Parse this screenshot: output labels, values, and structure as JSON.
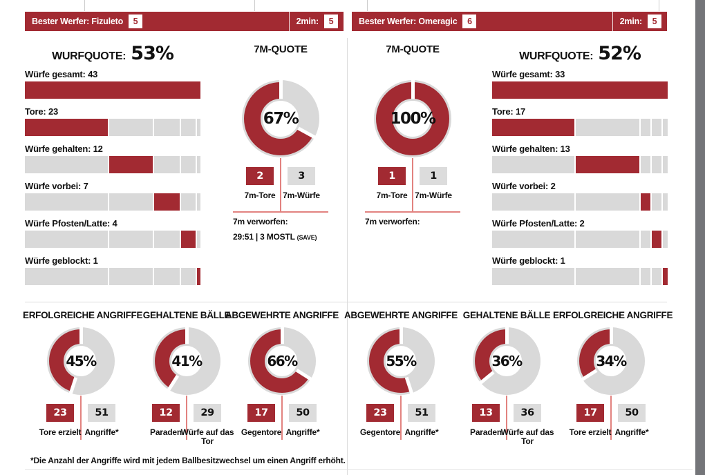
{
  "colors": {
    "red": "#a22a32",
    "gray": "#d9d9d9",
    "box_gray": "#dcdcdc",
    "connector_red": "#e2827f",
    "divider": "#dcdcdc",
    "tick": "#cccccc",
    "edge_strip": "#747579",
    "bottom_line": "#e3e3e3",
    "white": "#ffffff"
  },
  "header_home": {
    "label": "Bester Werfer: Fizuleto",
    "badge": "5",
    "right_label": "2min:",
    "right_badge": "5"
  },
  "header_away": {
    "label": "Bester Werfer: Omeragic",
    "badge": "6",
    "right_label": "2min:",
    "right_badge": "5"
  },
  "shot_home": {
    "title": "WURFQUOTE:",
    "percent_label": "53%",
    "weights": [
      23,
      12,
      7,
      4,
      1
    ],
    "rows": [
      {
        "label": "Würfe gesamt: 43",
        "full": true
      },
      {
        "label": "Tore: 23",
        "seg": 0
      },
      {
        "label": "Würfe gehalten: 12",
        "seg": 1
      },
      {
        "label": "Würfe vorbei: 7",
        "seg": 2
      },
      {
        "label": "Würfe Pfosten/Latte: 4",
        "seg": 3
      },
      {
        "label": "Würfe geblockt: 1",
        "seg": 4
      }
    ]
  },
  "shot_away": {
    "title": "WURFQUOTE:",
    "percent_label": "52%",
    "weights": [
      17,
      13,
      2,
      2,
      1
    ],
    "rows": [
      {
        "label": "Würfe gesamt: 33",
        "full": true
      },
      {
        "label": "Tore: 17",
        "seg": 0
      },
      {
        "label": "Würfe gehalten: 13",
        "seg": 1
      },
      {
        "label": "Würfe vorbei: 2",
        "seg": 2
      },
      {
        "label": "Würfe Pfosten/Latte: 2",
        "seg": 3
      },
      {
        "label": "Würfe geblockt: 1",
        "seg": 4
      }
    ]
  },
  "sevenm_home": {
    "title": "7M-QUOTE",
    "percent": 67,
    "percent_label": "67%",
    "box1": {
      "value": "2",
      "label": "7m-Tore"
    },
    "box2": {
      "value": "3",
      "label": "7m-Würfe"
    },
    "note_label": "7m verworfen:",
    "note_value": "29:51 | 3 MOSTL",
    "note_small": "(SAVE)"
  },
  "sevenm_away": {
    "title": "7M-QUOTE",
    "percent": 100,
    "percent_label": "100%",
    "box1": {
      "value": "1",
      "label": "7m-Tore"
    },
    "box2": {
      "value": "1",
      "label": "7m-Würfe"
    },
    "note_label": "7m verworfen:",
    "note_value": "",
    "note_small": ""
  },
  "attack_donuts": [
    {
      "title": "ERFOLGREICHE ANGRIFFE",
      "percent": 45,
      "percent_label": "45%",
      "box1": {
        "value": "23",
        "label": "Tore erzielt"
      },
      "box2": {
        "value": "51",
        "label": "Angriffe*"
      }
    },
    {
      "title": "GEHALTENE BÄLLE",
      "percent": 41,
      "percent_label": "41%",
      "box1": {
        "value": "12",
        "label": "Paraden"
      },
      "box2": {
        "value": "29",
        "label": "Würfe auf das Tor"
      }
    },
    {
      "title": "ABGEWEHRTE ANGRIFFE",
      "percent": 66,
      "percent_label": "66%",
      "box1": {
        "value": "17",
        "label": "Gegentore"
      },
      "box2": {
        "value": "50",
        "label": "Angriffe*"
      }
    },
    {
      "title": "ABGEWEHRTE ANGRIFFE",
      "percent": 55,
      "percent_label": "55%",
      "box1": {
        "value": "23",
        "label": "Gegentore"
      },
      "box2": {
        "value": "51",
        "label": "Angriffe*"
      }
    },
    {
      "title": "GEHALTENE BÄLLE",
      "percent": 36,
      "percent_label": "36%",
      "box1": {
        "value": "13",
        "label": "Paraden"
      },
      "box2": {
        "value": "36",
        "label": "Würfe auf das Tor"
      }
    },
    {
      "title": "ERFOLGREICHE ANGRIFFE",
      "percent": 34,
      "percent_label": "34%",
      "box1": {
        "value": "17",
        "label": "Tore erzielt"
      },
      "box2": {
        "value": "50",
        "label": "Angriffe*"
      }
    }
  ],
  "footnote": "*Die Anzahl der Angriffe wird mit jedem Ballbesitzwechsel um einen Angriff erhöht.",
  "chart_data": [
    {
      "type": "bar",
      "orientation": "horizontal",
      "title": "WURFQUOTE: 53%",
      "categories": [
        "Würfe gesamt",
        "Tore",
        "Würfe gehalten",
        "Würfe vorbei",
        "Würfe Pfosten/Latte",
        "Würfe geblockt"
      ],
      "values": [
        43,
        23,
        12,
        7,
        4,
        1
      ]
    },
    {
      "type": "bar",
      "orientation": "horizontal",
      "title": "WURFQUOTE: 52%",
      "categories": [
        "Würfe gesamt",
        "Tore",
        "Würfe gehalten",
        "Würfe vorbei",
        "Würfe Pfosten/Latte",
        "Würfe geblockt"
      ],
      "values": [
        33,
        17,
        13,
        2,
        2,
        1
      ]
    },
    {
      "type": "pie",
      "title": "7M-QUOTE",
      "percent": 67,
      "categories": [
        "7m-Tore",
        "7m-Würfe"
      ],
      "values": [
        2,
        3
      ],
      "note": "7m verworfen: 29:51 | 3 MOSTL (SAVE)"
    },
    {
      "type": "pie",
      "title": "7M-QUOTE",
      "percent": 100,
      "categories": [
        "7m-Tore",
        "7m-Würfe"
      ],
      "values": [
        1,
        1
      ],
      "note": "7m verworfen:"
    },
    {
      "type": "pie",
      "title": "ERFOLGREICHE ANGRIFFE",
      "percent": 45,
      "categories": [
        "Tore erzielt",
        "Angriffe*"
      ],
      "values": [
        23,
        51
      ]
    },
    {
      "type": "pie",
      "title": "GEHALTENE BÄLLE",
      "percent": 41,
      "categories": [
        "Paraden",
        "Würfe auf das Tor"
      ],
      "values": [
        12,
        29
      ]
    },
    {
      "type": "pie",
      "title": "ABGEWEHRTE ANGRIFFE",
      "percent": 66,
      "categories": [
        "Gegentore",
        "Angriffe*"
      ],
      "values": [
        17,
        50
      ]
    },
    {
      "type": "pie",
      "title": "ABGEWEHRTE ANGRIFFE",
      "percent": 55,
      "categories": [
        "Gegentore",
        "Angriffe*"
      ],
      "values": [
        23,
        51
      ]
    },
    {
      "type": "pie",
      "title": "GEHALTENE BÄLLE",
      "percent": 36,
      "categories": [
        "Paraden",
        "Würfe auf das Tor"
      ],
      "values": [
        13,
        36
      ]
    },
    {
      "type": "pie",
      "title": "ERFOLGREICHE ANGRIFFE",
      "percent": 34,
      "categories": [
        "Tore erzielt",
        "Angriffe*"
      ],
      "values": [
        17,
        50
      ]
    }
  ]
}
